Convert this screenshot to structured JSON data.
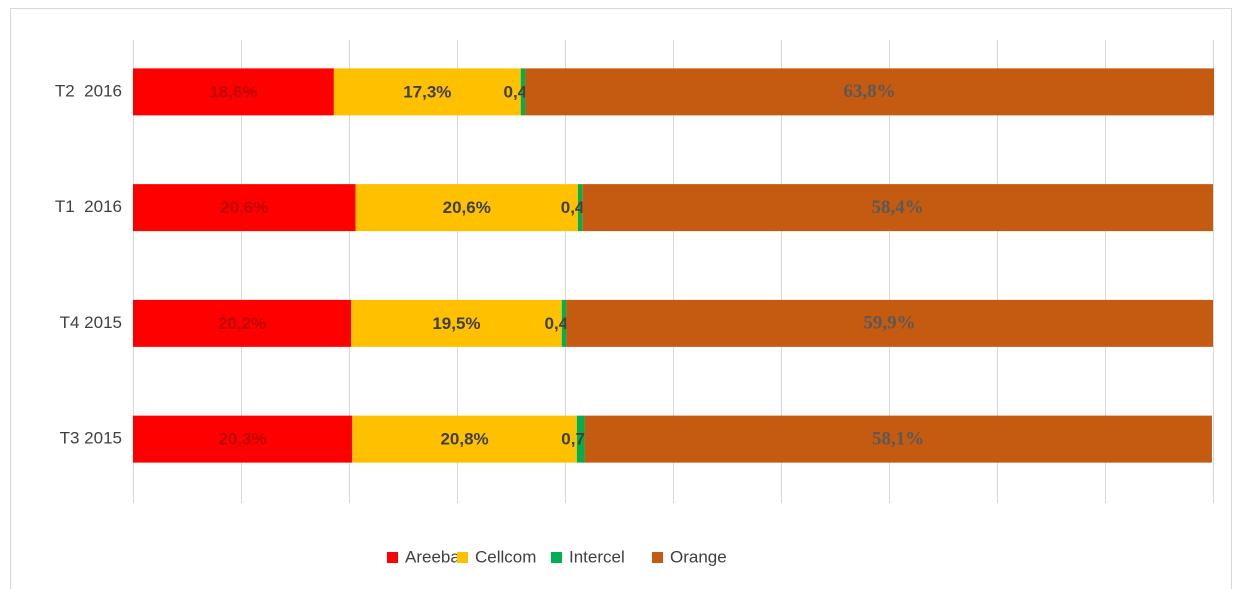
{
  "chart_data": {
    "type": "stacked-bar-horizontal",
    "categories": [
      "T2  2016",
      "T1  2016",
      "T4 2015",
      "T3 2015"
    ],
    "series": [
      {
        "name": "Areeba",
        "color": "#ff0000",
        "label_color": "#c00000",
        "values": [
          18.6,
          20.6,
          20.2,
          20.3
        ],
        "value_labels": [
          "18,6%",
          "20,6%",
          "20,2%",
          "20,3%"
        ]
      },
      {
        "name": "Cellcom",
        "color": "#ffc000",
        "label_color": "#404040",
        "values": [
          17.3,
          20.6,
          19.5,
          20.8
        ],
        "value_labels": [
          "17,3%",
          "20,6%",
          "19,5%",
          "20,8%"
        ]
      },
      {
        "name": "Intercel",
        "color": "#00b050",
        "label_color": "#404040",
        "values": [
          0.4,
          0.4,
          0.4,
          0.7
        ],
        "value_labels": [
          "0,4%",
          "0,4%",
          "0,4%",
          "0,7%"
        ]
      },
      {
        "name": "Orange",
        "color": "#c55a11",
        "label_color": "#595959",
        "values": [
          63.8,
          58.4,
          59.9,
          58.1
        ],
        "value_labels": [
          "63,8%",
          "58,4%",
          "59,9%",
          "58,1%"
        ]
      }
    ],
    "xlim": [
      0,
      100
    ],
    "xticks": [
      0,
      10,
      20,
      30,
      40,
      50,
      60,
      70,
      80,
      90,
      100
    ],
    "grid": true,
    "legend": "bottom"
  }
}
